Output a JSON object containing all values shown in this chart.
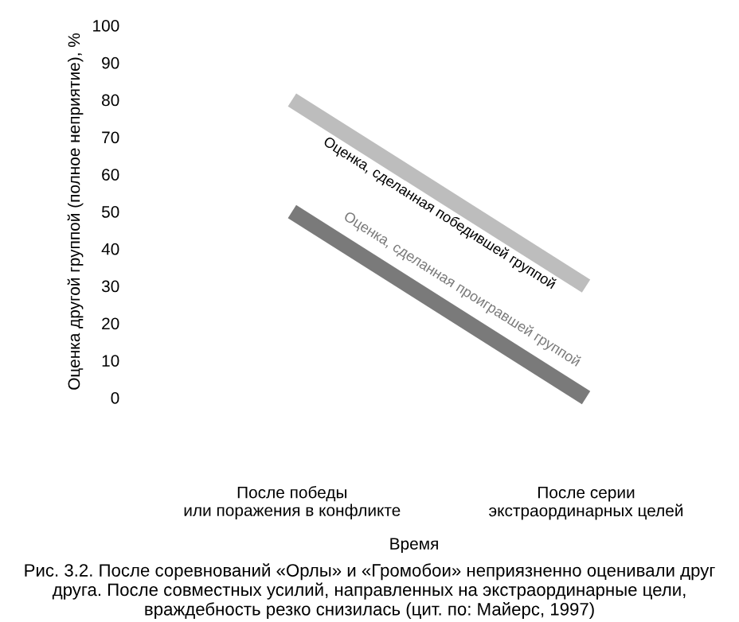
{
  "chart_data": {
    "type": "line",
    "ylabel": "Оценка другой группой (полное неприятие), %",
    "xlabel": "Время",
    "categories": [
      "После победы\nили поражения в конфликте",
      "После серии\nэкстраординарных целей"
    ],
    "series": [
      {
        "name": "Оценка, сделанная победившей группой",
        "color": "#bdbdbd",
        "values": [
          80,
          30
        ]
      },
      {
        "name": "Оценка, сделанная проигравшей группой",
        "color": "#7a7a7a",
        "values": [
          50,
          0
        ]
      }
    ],
    "ylim": [
      0,
      100
    ],
    "yticks": [
      0,
      10,
      20,
      30,
      40,
      50,
      60,
      70,
      80,
      90,
      100
    ],
    "grid": false,
    "legend": false,
    "marker": "none",
    "line_style": "solid",
    "annotations": [
      "Рис. 3.2. После соревнований «Орлы» и «Громобои» неприязненно оценивали друг друга. После совместных усилий, направленных на экстраординарные цели, враждебность резко снизилась (цит. по: Майерс, 1997)"
    ]
  }
}
